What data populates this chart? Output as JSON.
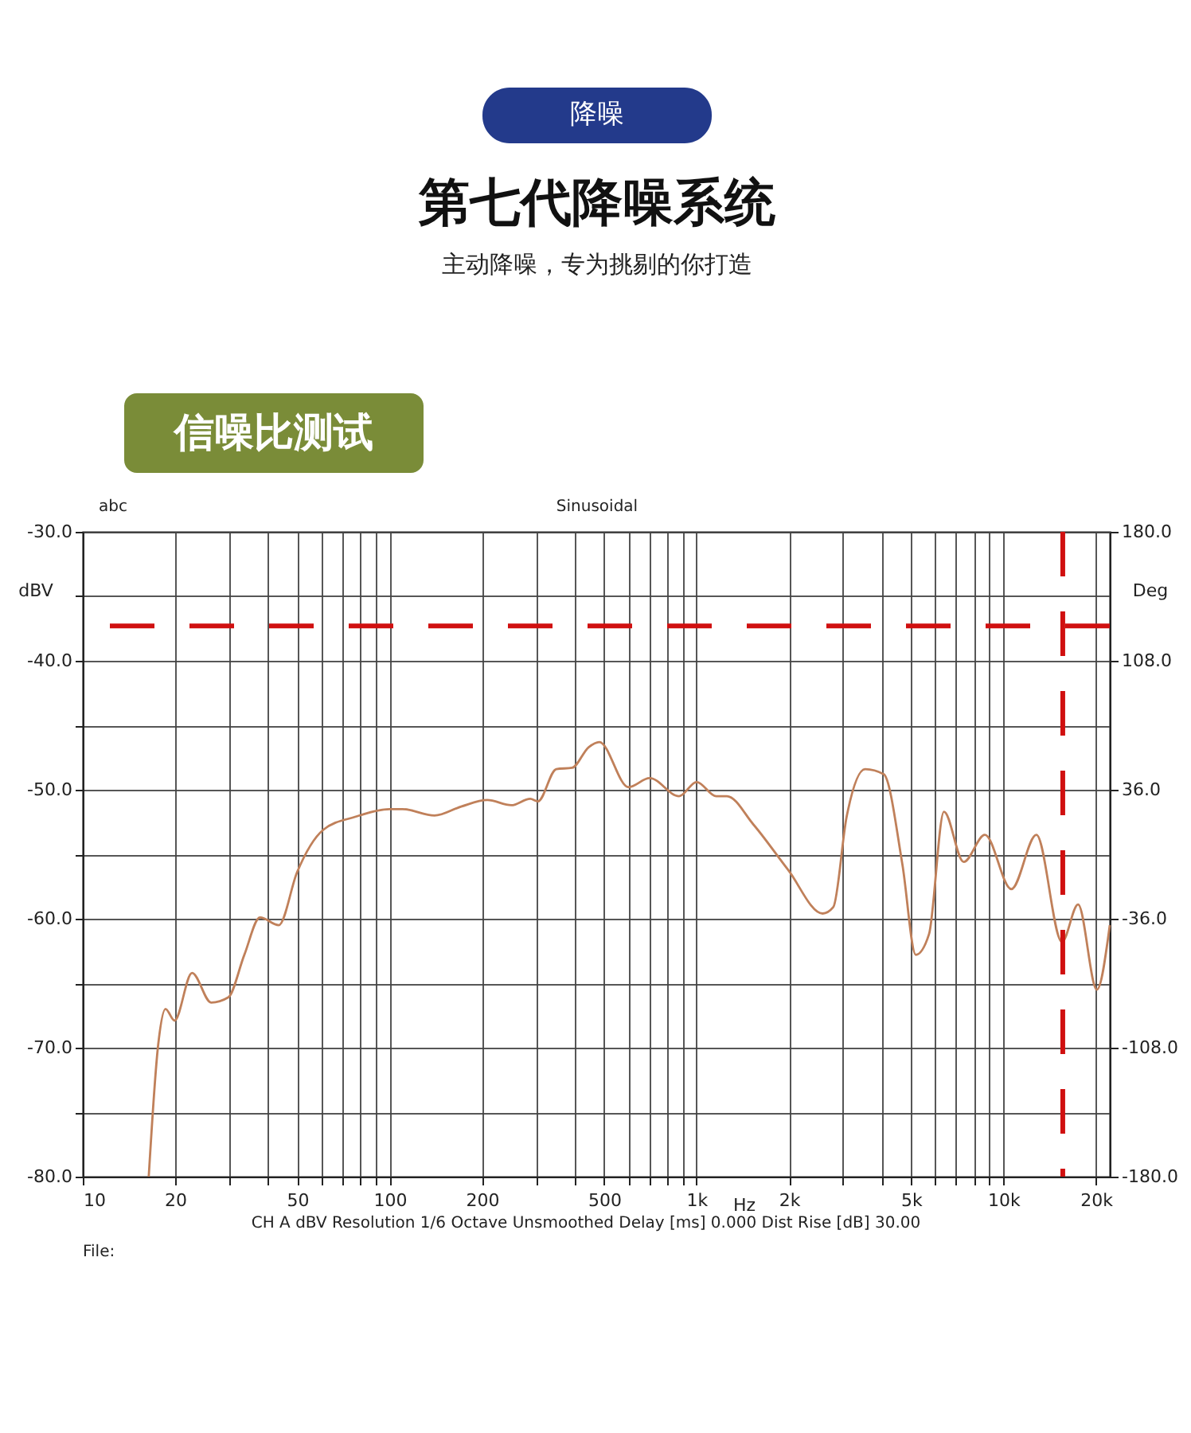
{
  "chart_data": {
    "type": "line",
    "title": "第七代降噪系统",
    "subtitle": "主动降噪，专为挑剔的你打造",
    "xlabel": "Hz",
    "ylabel": "dBV",
    "y2label": "Deg",
    "annotations": [
      "降噪",
      "信噪比测试",
      "abc",
      "Sinusoidal",
      "CH A   dBV   Resolution 1/6 Octave   Unsmoothed   Delay [ms] 0.000   Dist Rise [dB] 30.00",
      "File:"
    ],
    "log": "x",
    "grid": true,
    "marker": "none",
    "line_style": "solid",
    "xlim": [
      10,
      22200
    ],
    "ylim": [
      -80,
      -30
    ],
    "y2lim": [
      -180,
      180
    ],
    "xticks": [
      10,
      20,
      {
        "value": 30,
        "label": null
      },
      {
        "value": 40,
        "label": null
      },
      50,
      {
        "value": 60,
        "label": null
      },
      {
        "value": 70,
        "label": null
      },
      {
        "value": 80,
        "label": null
      },
      {
        "value": 90,
        "label": null
      },
      100,
      200,
      {
        "value": 300,
        "label": null
      },
      {
        "value": 400,
        "label": null
      },
      500,
      {
        "value": 600,
        "label": null
      },
      {
        "value": 700,
        "label": null
      },
      {
        "value": 800,
        "label": null
      },
      {
        "value": 900,
        "label": null
      },
      {
        "value": 1000,
        "label": "1k"
      },
      {
        "value": 2000,
        "label": "2k"
      },
      {
        "value": 3000,
        "label": null
      },
      {
        "value": 4000,
        "label": null
      },
      {
        "value": 5000,
        "label": "5k"
      },
      {
        "value": 6000,
        "label": null
      },
      {
        "value": 7000,
        "label": null
      },
      {
        "value": 8000,
        "label": null
      },
      {
        "value": 9000,
        "label": null
      },
      {
        "value": 10000,
        "label": "10k"
      },
      {
        "value": 20000,
        "label": "20k"
      }
    ],
    "yticks": [
      {
        "value": -80,
        "label": "-80.0"
      },
      {
        "value": -75,
        "label": null
      },
      {
        "value": -70,
        "label": "-70.0"
      },
      {
        "value": -65,
        "label": null
      },
      {
        "value": -60,
        "label": "-60.0"
      },
      {
        "value": -55,
        "label": null
      },
      {
        "value": -50,
        "label": "-50.0"
      },
      {
        "value": -45,
        "label": null
      },
      {
        "value": -40,
        "label": "-40.0"
      },
      {
        "value": -35,
        "label": null
      },
      {
        "value": -30,
        "label": "-30.0"
      }
    ],
    "y2ticks": [
      {
        "value": -180,
        "label": "-180.0"
      },
      {
        "value": -108,
        "label": "-108.0"
      },
      {
        "value": -36,
        "label": "-36.0"
      },
      {
        "value": 36,
        "label": "36.0"
      },
      {
        "value": 108,
        "label": "108.0"
      },
      {
        "value": 180,
        "label": "180.0"
      }
    ],
    "ref_lines": [
      {
        "axis": "y",
        "value": -37.3,
        "color": "#d01010",
        "line_style": "dashed"
      },
      {
        "axis": "x",
        "value": 15600,
        "color": "#d01010",
        "line_style": "dashed"
      }
    ],
    "series": [
      {
        "color": "#c0805a",
        "x": [
          16.4,
          17.6,
          18.6,
          19.9,
          22.7,
          26.2,
          29.8,
          33.6,
          37.8,
          43.5,
          49.9,
          60.8,
          77.2,
          100,
          110,
          140,
          171,
          208,
          249,
          287,
          304,
          349,
          393,
          445,
          482,
          600,
          703,
          877,
          1000,
          1159,
          1255,
          1532,
          1985,
          2574,
          2789,
          3082,
          3542,
          4073,
          4684,
          5179,
          5719,
          6398,
          7417,
          8696,
          10610,
          12800,
          15510,
          17500,
          20150,
          22200
        ],
        "values": [
          -80,
          -69.8,
          -67.0,
          -67.9,
          -64.2,
          -66.5,
          -66.1,
          -62.8,
          -59.9,
          -60.5,
          -56.4,
          -53.1,
          -52.1,
          -51.5,
          -51.5,
          -52.0,
          -51.3,
          -50.8,
          -51.2,
          -50.7,
          -50.9,
          -48.4,
          -48.3,
          -46.7,
          -46.3,
          -49.8,
          -49.1,
          -50.5,
          -49.4,
          -50.5,
          -50.5,
          -52.7,
          -56.2,
          -59.6,
          -59.1,
          -52.1,
          -48.4,
          -48.8,
          -55.8,
          -62.8,
          -61.2,
          -51.7,
          -55.6,
          -53.5,
          -57.7,
          -53.5,
          -61.8,
          -58.9,
          -65.5,
          -60.5
        ]
      }
    ]
  }
}
